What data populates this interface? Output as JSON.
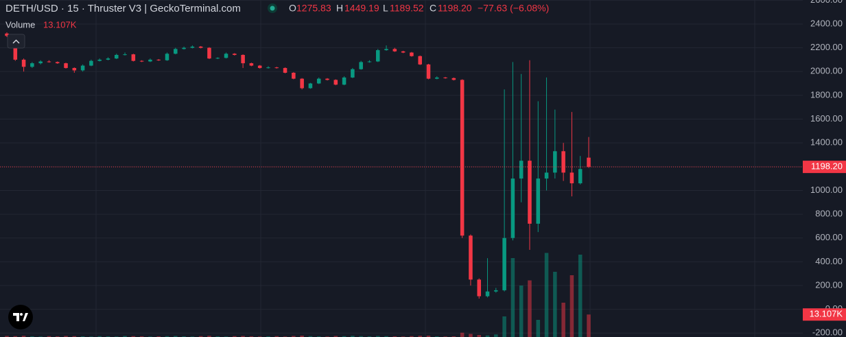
{
  "chart_data": {
    "type": "candlestick",
    "header": {
      "title": "DETH/USD · 15 · Thruster V3 | GeckoTerminal.com",
      "o_label": "O",
      "open": "1275.83",
      "h_label": "H",
      "high": "1449.19",
      "l_label": "L",
      "low": "1189.52",
      "c_label": "C",
      "close": "1198.20",
      "change": "−77.63 (−6.08%)"
    },
    "up_color": "#089981",
    "down_color": "#f23645",
    "open": [
      2320,
      2300,
      2100,
      2040,
      2070,
      2085,
      2080,
      2070,
      2030,
      2010,
      2050,
      2090,
      2100,
      2110,
      2140,
      2145,
      2090,
      2085,
      2100,
      2095,
      2150,
      2190,
      2200,
      2210,
      2200,
      2110,
      2115,
      2150,
      2140,
      2070,
      2050,
      2030,
      2035,
      2030,
      1990,
      1940,
      1860,
      1900,
      1940,
      1930,
      1890,
      1950,
      2020,
      2080,
      2085,
      2180,
      2190,
      2170,
      2160,
      2130,
      2060,
      1940,
      1950,
      1945,
      1930,
      620,
      250,
      110,
      150,
      160,
      600,
      1100,
      1250,
      720,
      1100,
      1150,
      1330,
      1150,
      1060,
      1275.83
    ],
    "high": [
      2330,
      2310,
      2110,
      2080,
      2095,
      2095,
      2085,
      2075,
      2035,
      2060,
      2100,
      2110,
      2120,
      2150,
      2160,
      2150,
      2095,
      2110,
      2105,
      2160,
      2200,
      2210,
      2220,
      2215,
      2205,
      2120,
      2160,
      2155,
      2145,
      2075,
      2055,
      2045,
      2040,
      2035,
      1995,
      1945,
      1905,
      1950,
      1945,
      1935,
      1960,
      2030,
      2090,
      2095,
      2190,
      2220,
      2200,
      2175,
      2165,
      2135,
      2065,
      1960,
      1955,
      1950,
      1935,
      630,
      260,
      430,
      180,
      1850,
      2080,
      1980,
      2095,
      1750,
      1950,
      1680,
      1400,
      1660,
      1290,
      1449.19
    ],
    "low": [
      2290,
      2090,
      2000,
      2030,
      2060,
      2075,
      2065,
      2025,
      1990,
      2000,
      2045,
      2085,
      2095,
      2105,
      2135,
      2085,
      2080,
      2080,
      2090,
      2090,
      2145,
      2185,
      2195,
      2195,
      2105,
      2105,
      2110,
      2135,
      2030,
      2045,
      2025,
      2025,
      2025,
      1985,
      1935,
      1850,
      1855,
      1895,
      1925,
      1885,
      1885,
      1945,
      2015,
      2075,
      2080,
      2175,
      2165,
      2155,
      2125,
      2055,
      1935,
      1935,
      1940,
      1925,
      600,
      200,
      90,
      100,
      140,
      150,
      580,
      900,
      500,
      650,
      1000,
      1100,
      1080,
      950,
      1050,
      1189.52
    ],
    "close": [
      2300,
      2100,
      2040,
      2070,
      2085,
      2080,
      2070,
      2030,
      2010,
      2050,
      2090,
      2100,
      2110,
      2140,
      2145,
      2090,
      2085,
      2100,
      2095,
      2150,
      2190,
      2200,
      2210,
      2200,
      2110,
      2115,
      2150,
      2140,
      2070,
      2050,
      2030,
      2035,
      2030,
      1990,
      1940,
      1860,
      1900,
      1940,
      1930,
      1890,
      1950,
      2020,
      2080,
      2085,
      2180,
      2190,
      2170,
      2160,
      2130,
      2060,
      1940,
      1950,
      1945,
      1930,
      620,
      250,
      110,
      150,
      160,
      600,
      1100,
      1250,
      720,
      1100,
      1150,
      1330,
      1150,
      1060,
      1180,
      1198.2
    ],
    "volume": {
      "name": "Volume",
      "values": [
        600,
        500,
        700,
        400,
        300,
        500,
        400,
        600,
        500,
        400,
        300,
        500,
        400,
        300,
        600,
        500,
        400,
        300,
        400,
        500,
        600,
        400,
        300,
        500,
        700,
        400,
        300,
        500,
        600,
        400,
        300,
        400,
        500,
        300,
        600,
        800,
        500,
        400,
        300,
        600,
        500,
        700,
        500,
        400,
        600,
        500,
        400,
        300,
        500,
        700,
        800,
        400,
        300,
        400,
        2500,
        1800,
        1200,
        900,
        1500,
        12000,
        46000,
        30000,
        33000,
        10000,
        49000,
        38000,
        20000,
        36000,
        48000,
        13107
      ],
      "value_labels": [
        null,
        null,
        null,
        null,
        null,
        null,
        null,
        null,
        null,
        null,
        null,
        null,
        null,
        null,
        null,
        null,
        null,
        null,
        null,
        null,
        null,
        null,
        null,
        null,
        null,
        null,
        null,
        null,
        null,
        null,
        null,
        null,
        null,
        null,
        null,
        null,
        null,
        null,
        null,
        null,
        null,
        null,
        null,
        null,
        null,
        null,
        null,
        null,
        null,
        null,
        null,
        null,
        null,
        null,
        null,
        null,
        null,
        null,
        null,
        null,
        null,
        null,
        null,
        null,
        null,
        null,
        null,
        null,
        null,
        "13.107K"
      ],
      "ylim": [
        0,
        60000
      ]
    },
    "last_price": {
      "value": 1198.2,
      "label": "1198.20"
    },
    "ylim": [
      -233,
      2602
    ],
    "yticks": [
      {
        "value": -200,
        "label": "-200.00"
      },
      {
        "value": 0,
        "label": "0.00"
      },
      {
        "value": 200,
        "label": "200.00"
      },
      {
        "value": 400,
        "label": "400.00"
      },
      {
        "value": 600,
        "label": "600.00"
      },
      {
        "value": 800,
        "label": "800.00"
      },
      {
        "value": 1000,
        "label": "1000.00"
      },
      {
        "value": 1200,
        "label": "1200.00"
      },
      {
        "value": 1400,
        "label": "1400.00"
      },
      {
        "value": 1600,
        "label": "1600.00"
      },
      {
        "value": 1800,
        "label": "1800.00"
      },
      {
        "value": 2000,
        "label": "2000.00"
      },
      {
        "value": 2200,
        "label": "2200.00"
      },
      {
        "value": 2400,
        "label": "2400.00"
      },
      {
        "value": 2600,
        "label": "2600.00"
      }
    ],
    "grid": true
  }
}
